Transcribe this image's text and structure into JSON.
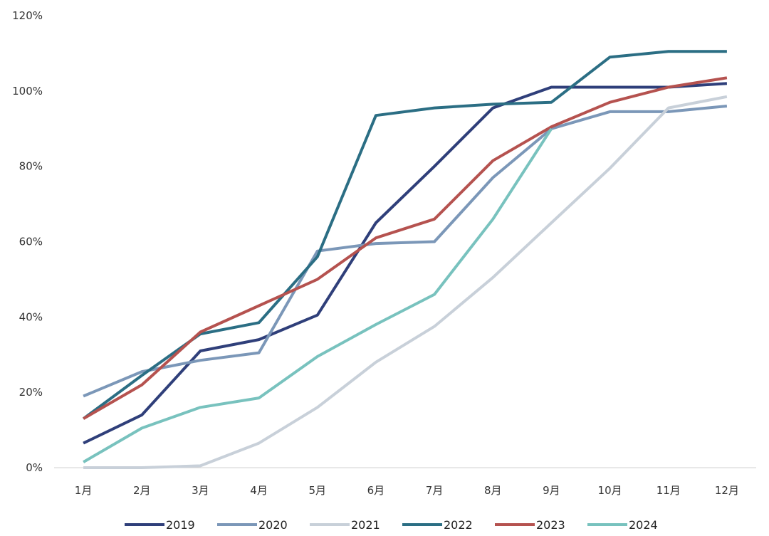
{
  "chart_data": {
    "type": "line",
    "title": "",
    "xlabel": "",
    "ylabel": "",
    "categories": [
      "1月",
      "2月",
      "3月",
      "4月",
      "5月",
      "6月",
      "7月",
      "8月",
      "9月",
      "10月",
      "11月",
      "12月"
    ],
    "ylim": [
      0,
      120
    ],
    "y_ticks": [
      "0%",
      "20%",
      "40%",
      "60%",
      "80%",
      "100%",
      "120%"
    ],
    "grid": false,
    "legend_position": "bottom",
    "series": [
      {
        "name": "2019",
        "color": "#2f3f7a",
        "values": [
          6.5,
          14,
          31,
          34,
          40.5,
          65,
          80,
          95.5,
          101,
          101,
          101,
          102
        ]
      },
      {
        "name": "2020",
        "color": "#7b97b8",
        "values": [
          19,
          25.5,
          28.5,
          30.5,
          57.5,
          59.5,
          60,
          77,
          90,
          94.5,
          94.5,
          96
        ]
      },
      {
        "name": "2021",
        "color": "#c8d0d9",
        "values": [
          0,
          0,
          0.5,
          6.5,
          16,
          28,
          37.5,
          50.5,
          65,
          79.5,
          95.5,
          98.5
        ]
      },
      {
        "name": "2022",
        "color": "#2b6e84",
        "values": [
          13,
          24.5,
          35.5,
          38.5,
          56,
          93.5,
          95.5,
          96.5,
          97,
          109,
          110.5,
          110.5
        ]
      },
      {
        "name": "2023",
        "color": "#b5524f",
        "values": [
          13,
          22,
          36,
          43,
          50,
          61,
          66,
          81.5,
          90.5,
          97,
          101,
          103.5
        ]
      },
      {
        "name": "2024",
        "color": "#78c2be",
        "values": [
          1.5,
          10.5,
          16,
          18.5,
          29.5,
          38,
          46,
          66,
          90,
          null,
          null,
          null
        ]
      }
    ]
  }
}
